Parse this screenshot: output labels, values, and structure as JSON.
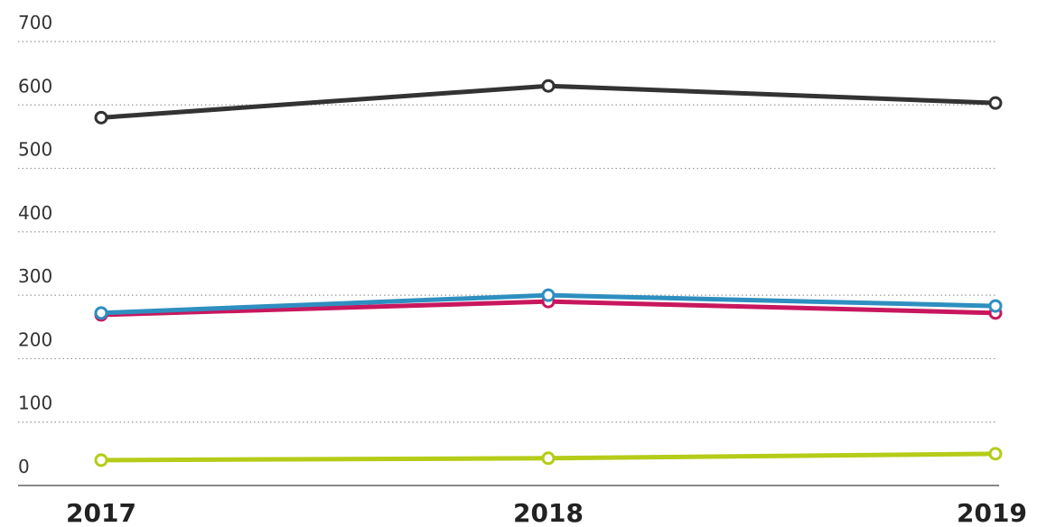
{
  "chart_data": {
    "type": "line",
    "categories": [
      "2017",
      "2018",
      "2019"
    ],
    "series": [
      {
        "color": "#333333",
        "values": [
          580,
          630,
          603
        ]
      },
      {
        "color": "#c8175e",
        "values": [
          269,
          290,
          272
        ]
      },
      {
        "color": "#2e8fc0",
        "values": [
          272,
          300,
          283
        ]
      },
      {
        "color": "#b5cc18",
        "values": [
          40,
          43,
          50
        ]
      }
    ],
    "ylim": [
      0,
      700
    ],
    "yticks": [
      0,
      100,
      200,
      300,
      400,
      500,
      600,
      700
    ],
    "grid": true
  }
}
